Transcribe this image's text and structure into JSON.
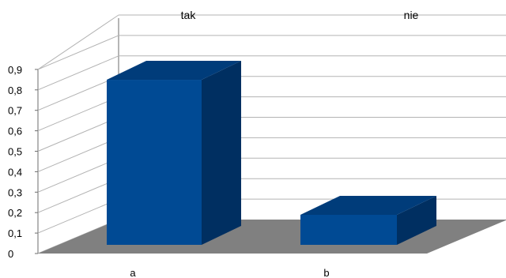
{
  "chart_data": {
    "type": "bar",
    "categories": [
      "a",
      "b"
    ],
    "top_labels": [
      "tak",
      "nie"
    ],
    "values": [
      0.83,
      0.17
    ],
    "ylim": [
      0,
      0.9
    ],
    "yticks": [
      "0",
      "0,1",
      "0,2",
      "0,3",
      "0,4",
      "0,5",
      "0,6",
      "0,7",
      "0,8",
      "0,9"
    ],
    "title": "",
    "xlabel": "",
    "ylabel": "",
    "grid": true,
    "style": "3d",
    "colors": {
      "bar_front": "#004a94",
      "bar_side": "#002f61",
      "bar_top": "#003c7a",
      "floor": "#808080",
      "grid": "#b3b3b3",
      "axis": "#6e6e6e"
    }
  }
}
